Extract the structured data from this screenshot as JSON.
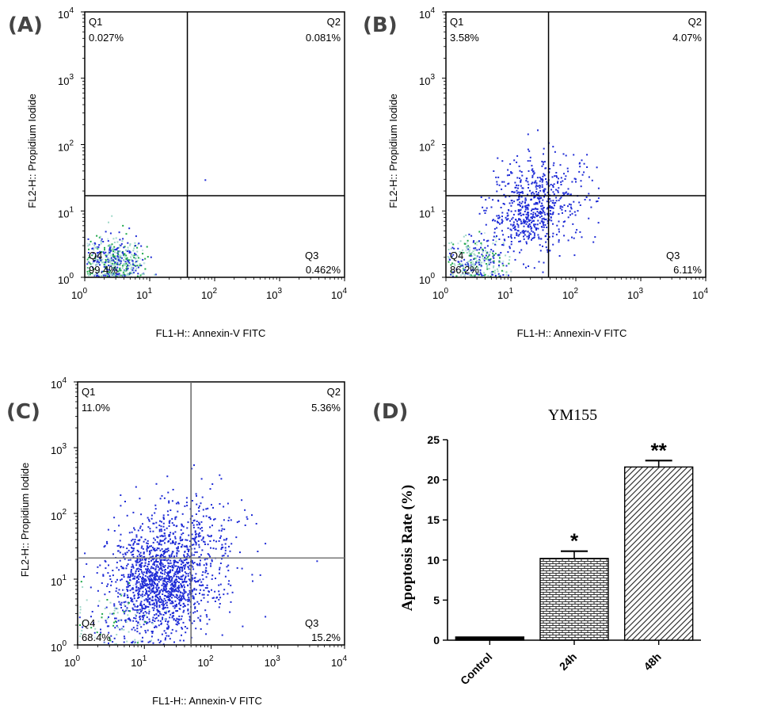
{
  "chart_data": [
    {
      "panel": "(A)",
      "type": "scatter",
      "xlabel": "FL1-H:: Annexin-V FITC",
      "ylabel": "FL2-H:: Propidium Iodide",
      "xlim": [
        1,
        10000
      ],
      "ylim": [
        1,
        10000
      ],
      "x_scale": "log",
      "y_scale": "log",
      "x_ticks": [
        "10",
        "10",
        "10",
        "10",
        "10"
      ],
      "x_tick_exps": [
        "0",
        "1",
        "2",
        "3",
        "4"
      ],
      "y_ticks": [
        "10",
        "10",
        "10",
        "10",
        "10"
      ],
      "y_tick_exps": [
        "0",
        "1",
        "2",
        "3",
        "4"
      ],
      "gate": {
        "x": 38,
        "y": 17
      },
      "quadrants": {
        "Q1": {
          "label": "Q1",
          "value": "0.027%"
        },
        "Q2": {
          "label": "Q2",
          "value": "0.081%"
        },
        "Q3": {
          "label": "Q3",
          "value": "0.462%"
        },
        "Q4": {
          "label": "Q4",
          "value": "99.4%"
        }
      }
    },
    {
      "panel": "(B)",
      "type": "scatter",
      "xlabel": "FL1-H:: Annexin-V FITC",
      "ylabel": "FL2-H:: Propidium Iodide",
      "xlim": [
        1,
        10000
      ],
      "ylim": [
        1,
        10000
      ],
      "x_scale": "log",
      "y_scale": "log",
      "x_ticks": [
        "10",
        "10",
        "10",
        "10",
        "10"
      ],
      "x_tick_exps": [
        "0",
        "1",
        "2",
        "3",
        "4"
      ],
      "y_ticks": [
        "10",
        "10",
        "10",
        "10",
        "10"
      ],
      "y_tick_exps": [
        "0",
        "1",
        "2",
        "3",
        "4"
      ],
      "gate": {
        "x": 38,
        "y": 17
      },
      "quadrants": {
        "Q1": {
          "label": "Q1",
          "value": "3.58%"
        },
        "Q2": {
          "label": "Q2",
          "value": "4.07%"
        },
        "Q3": {
          "label": "Q3",
          "value": "6.11%"
        },
        "Q4": {
          "label": "Q4",
          "value": "86.2%"
        }
      }
    },
    {
      "panel": "(C)",
      "type": "scatter",
      "xlabel": "FL1-H:: Annexin-V FITC",
      "ylabel": "FL2-H:: Propidium Iodide",
      "xlim": [
        1,
        10000
      ],
      "ylim": [
        1,
        10000
      ],
      "x_scale": "log",
      "y_scale": "log",
      "x_ticks": [
        "10",
        "10",
        "10",
        "10",
        "10"
      ],
      "x_tick_exps": [
        "0",
        "1",
        "2",
        "3",
        "4"
      ],
      "y_ticks": [
        "10",
        "10",
        "10",
        "10",
        "10"
      ],
      "y_tick_exps": [
        "0",
        "1",
        "2",
        "3",
        "4"
      ],
      "gate": {
        "x": 50,
        "y": 21
      },
      "quadrants": {
        "Q1": {
          "label": "Q1",
          "value": "11.0%"
        },
        "Q2": {
          "label": "Q2",
          "value": "5.36%"
        },
        "Q3": {
          "label": "Q3",
          "value": "15.2%"
        },
        "Q4": {
          "label": "Q4",
          "value": "68.4%"
        }
      }
    },
    {
      "panel": "(D)",
      "type": "bar",
      "title": "YM155",
      "ylabel": "Apoptosis Rate (%)",
      "xlabel": "",
      "categories": [
        "Control",
        "24h",
        "48h"
      ],
      "values": [
        0.4,
        10.2,
        21.6
      ],
      "errors": [
        0,
        0.9,
        0.8
      ],
      "significance": [
        "",
        "*",
        "**"
      ],
      "ylim": [
        0,
        25
      ],
      "y_ticks": [
        "0",
        "5",
        "10",
        "15",
        "20",
        "25"
      ],
      "y_tick_values": [
        0,
        5,
        10,
        15,
        20,
        25
      ]
    }
  ]
}
